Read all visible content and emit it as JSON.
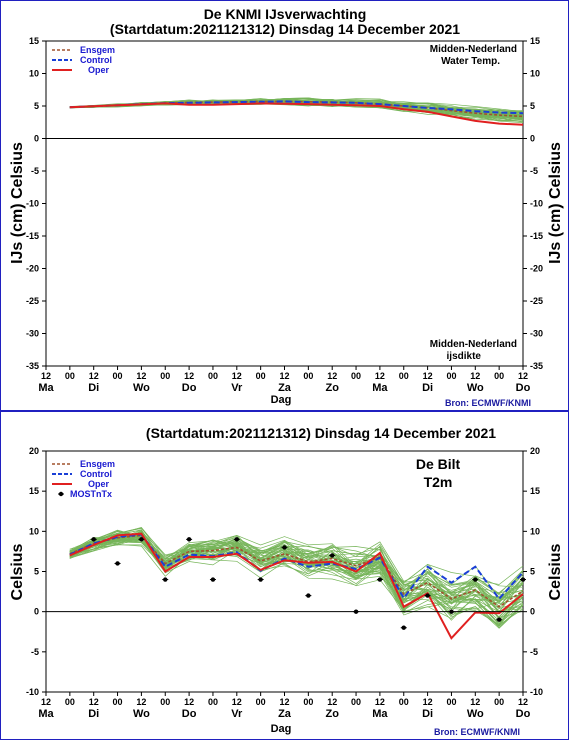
{
  "colors": {
    "members": "#77b55a",
    "ensgem": "#a0522d",
    "control": "#1a3fd6",
    "oper": "#e02020",
    "most": "#000000",
    "frame": "#2020c0"
  },
  "top_chart": {
    "title_line1": "De KNMI IJsverwachting",
    "title_line2": "(Startdatum:2021121312)  Dinsdag 14 December 2021",
    "ylabel_left": "IJs (cm)  Celsius",
    "ylabel_right": "IJs (cm)  Celsius",
    "note_top_line1": "Midden-Nederland",
    "note_top_line2": "Water Temp.",
    "note_bottom_line1": "Midden-Nederland",
    "note_bottom_line2": "ijsdikte",
    "xlabel": "Dag",
    "source": "Bron: ECMWF/KNMI",
    "legend": [
      "Ensgem",
      "Control",
      "Oper"
    ]
  },
  "bottom_chart": {
    "title": "(Startdatum:2021121312)  Dinsdag 14 December 2021",
    "ylabel_left": "Celsius",
    "ylabel_right": "Celsius",
    "location_line1": "De Bilt",
    "location_line2": "T2m",
    "xlabel": "Dag",
    "source": "Bron: ECMWF/KNMI",
    "legend": [
      "Ensgem",
      "Control",
      "Oper",
      "MOSTnTx"
    ]
  },
  "chart_data": [
    {
      "type": "line",
      "title": "De KNMI IJsverwachting (Startdatum:2021121312) Dinsdag 14 December 2021",
      "ylabel": "IJs (cm)  Celsius",
      "xlabel": "Dag",
      "ylim": [
        -35,
        15
      ],
      "yticks": [
        15,
        10,
        5,
        0,
        -5,
        -10,
        -15,
        -20,
        -25,
        -30,
        -35
      ],
      "x_tick_hours": [
        "12",
        "00",
        "12",
        "00",
        "12",
        "00",
        "12",
        "00",
        "12",
        "00",
        "12",
        "00",
        "12",
        "00",
        "12",
        "00",
        "12",
        "00",
        "12",
        "00",
        "12"
      ],
      "day_labels": [
        "Ma",
        "Di",
        "Wo",
        "Do",
        "Vr",
        "Za",
        "Zo",
        "Ma",
        "Di",
        "Wo",
        "Do"
      ],
      "x": [
        1,
        2,
        3,
        4,
        5,
        6,
        7,
        8,
        9,
        10,
        11,
        12,
        13,
        14,
        15,
        16,
        17,
        18,
        19,
        20
      ],
      "series": [
        {
          "name": "Ensgem",
          "values": [
            4.8,
            4.95,
            5.1,
            5.3,
            5.45,
            5.55,
            5.6,
            5.65,
            5.7,
            5.7,
            5.65,
            5.6,
            5.5,
            5.3,
            5.0,
            4.7,
            4.3,
            3.9,
            3.6,
            3.4
          ]
        },
        {
          "name": "Control",
          "values": [
            4.8,
            4.95,
            5.1,
            5.3,
            5.45,
            5.5,
            5.55,
            5.6,
            5.65,
            5.7,
            5.6,
            5.55,
            5.5,
            5.3,
            5.0,
            4.7,
            4.5,
            4.2,
            4.0,
            3.9
          ]
        },
        {
          "name": "Oper",
          "values": [
            4.8,
            4.95,
            5.1,
            5.25,
            5.4,
            5.2,
            5.2,
            5.3,
            5.4,
            5.35,
            5.3,
            5.2,
            5.1,
            5.0,
            4.5,
            4.1,
            3.4,
            2.7,
            2.3,
            2.1
          ]
        }
      ],
      "annotations": [
        "Midden-Nederland Water Temp.",
        "Midden-Nederland ijsdikte"
      ],
      "grid": false,
      "legend_position": "top-left"
    },
    {
      "type": "line",
      "title": "(Startdatum:2021121312) Dinsdag 14 December 2021",
      "ylabel": "Celsius",
      "xlabel": "Dag",
      "ylim": [
        -10,
        20
      ],
      "yticks": [
        20,
        15,
        10,
        5,
        0,
        -5,
        -10
      ],
      "x_tick_hours": [
        "12",
        "00",
        "12",
        "00",
        "12",
        "00",
        "12",
        "00",
        "12",
        "00",
        "12",
        "00",
        "12",
        "00",
        "12",
        "00",
        "12",
        "00",
        "12",
        "00",
        "12"
      ],
      "day_labels": [
        "Ma",
        "Di",
        "Wo",
        "Do",
        "Vr",
        "Za",
        "Zo",
        "Ma",
        "Di",
        "Wo",
        "Do"
      ],
      "x": [
        1,
        2,
        3,
        4,
        5,
        6,
        7,
        8,
        9,
        10,
        11,
        12,
        13,
        14,
        15,
        16,
        17,
        18,
        19,
        20
      ],
      "series": [
        {
          "name": "Ensgem",
          "values": [
            7.2,
            8.5,
            9.2,
            9.5,
            6.0,
            7.5,
            7.6,
            8.0,
            6.3,
            7.2,
            6.2,
            6.6,
            5.7,
            6.8,
            2.2,
            3.6,
            1.6,
            2.7,
            0.6,
            2.6
          ]
        },
        {
          "name": "Control",
          "values": [
            7.1,
            8.5,
            9.3,
            9.6,
            5.6,
            7.1,
            6.9,
            7.4,
            5.1,
            6.6,
            5.6,
            6.0,
            5.3,
            6.7,
            1.7,
            5.6,
            3.6,
            5.6,
            1.6,
            4.9
          ]
        },
        {
          "name": "Oper",
          "values": [
            7.0,
            8.3,
            9.5,
            9.7,
            5.0,
            6.8,
            6.8,
            7.2,
            5.2,
            6.4,
            6.1,
            6.2,
            5.0,
            7.3,
            0.6,
            2.3,
            -3.3,
            -0.1,
            -0.2,
            2.2
          ]
        },
        {
          "name": "MOSTnTx",
          "x": [
            2,
            3,
            4,
            5,
            6,
            7,
            8,
            9,
            10,
            11,
            12,
            13,
            14,
            15,
            16,
            17,
            18,
            19,
            20
          ],
          "values": [
            9.0,
            6.0,
            9.0,
            4.0,
            9.0,
            4.0,
            9.0,
            4.0,
            8.0,
            2.0,
            7.0,
            0.0,
            4.0,
            -2.0,
            2.0,
            0.0,
            4.0,
            -1.0,
            4.0
          ]
        }
      ],
      "annotations": [
        "De Bilt",
        "T2m"
      ],
      "grid": false,
      "legend_position": "top-left"
    }
  ]
}
